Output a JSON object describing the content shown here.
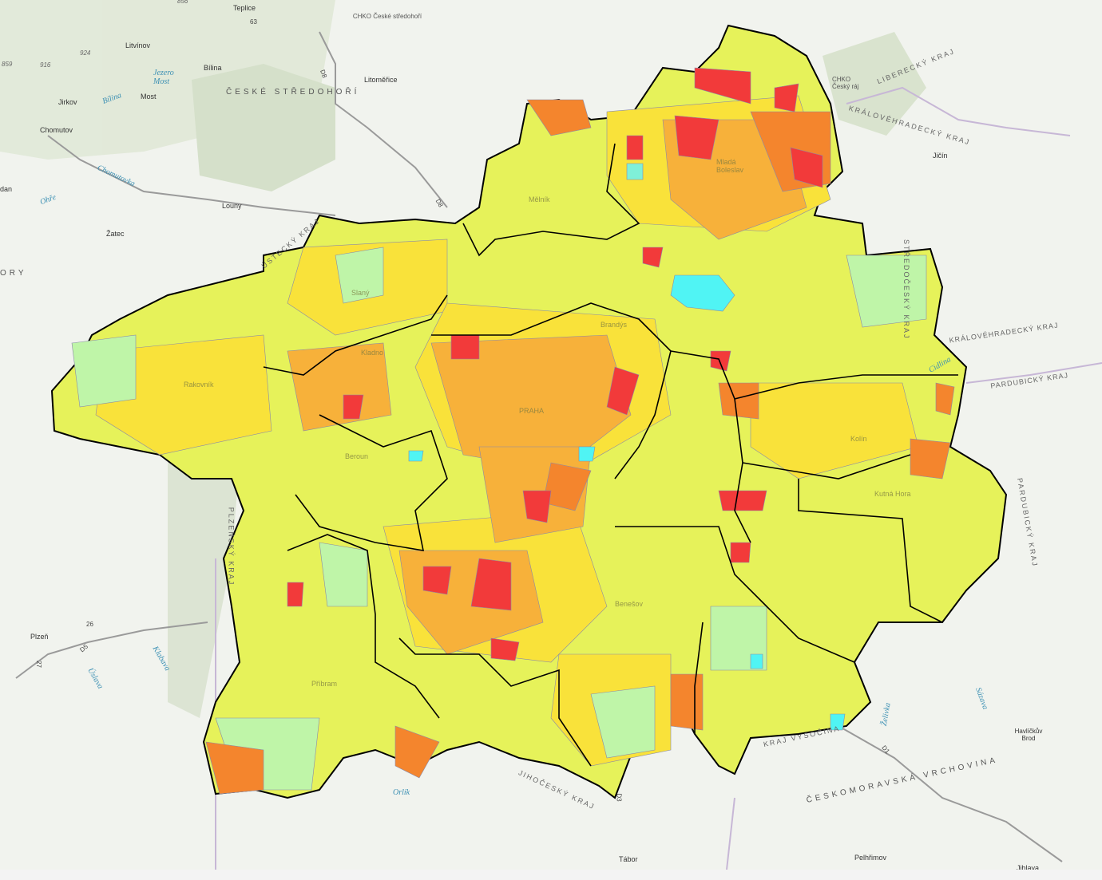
{
  "colors": {
    "base": "#f1f3ee",
    "hills": "#dde6d2",
    "yellow_green": "#e8f55a",
    "yellow": "#f9e23a",
    "light_orange": "#f7b13a",
    "orange": "#f4852d",
    "red": "#f23a3a",
    "light_green": "#bff5a8",
    "cyan": "#50f4f4",
    "district_border": "#000000",
    "municipality_border": "#8a8aa8"
  },
  "cities": [
    "Teplice",
    "Litvínov",
    "Bílina",
    "Most",
    "Litoměřice",
    "Jirkov",
    "Chomutov",
    "Louny",
    "Žatec",
    "Jičín",
    "Plzeň",
    "Havlíčkův Brod",
    "Tábor",
    "Pelhřimov",
    "Jihlava",
    "dan"
  ],
  "regions": [
    "ČESKÉ STŘEDOHOŘÍ",
    "ČESKOMORAVSKÁ VRCHOVINA",
    "ORY"
  ],
  "protected_areas": [
    "CHKO České středohoří",
    "CHKO Český ráj"
  ],
  "kraje": [
    "ÚSTECKÝ KRAJ",
    "LIBERECKÝ KRAJ",
    "KRÁLOVÉHRADECKÝ KRAJ",
    "KRÁLOVÉHRADECKÝ KRAJ",
    "PARDUBICKÝ KRAJ",
    "PLZEŇSKÝ KRAJ",
    "JIHOČESKÝ KRAJ",
    "KRAJ VYSOČINA",
    "STŘEDOČESKÝ KRAJ",
    "PARDUBICKÝ KRAJ"
  ],
  "water": [
    "Jezero Most",
    "Bílina",
    "Chomutovka",
    "Ohře",
    "Klabava",
    "Úslava",
    "Orlík",
    "Želivka",
    "Sázava",
    "Cidlina"
  ],
  "elevations": [
    "856",
    "924",
    "859",
    "916"
  ],
  "roads": [
    "63",
    "D8",
    "D8",
    "D5",
    "26",
    "27",
    "D1",
    "D3"
  ],
  "districts": [
    "Mělník",
    "Mladá Boleslav",
    "Kladno",
    "Slaný",
    "Rakovník",
    "PRAHA",
    "Beroun",
    "Benešov",
    "Kolín",
    "Kutná Hora",
    "Příbram",
    "Brandýs"
  ]
}
